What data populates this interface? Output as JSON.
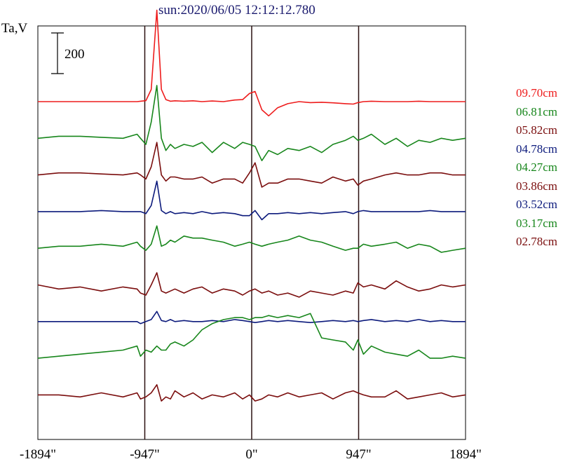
{
  "title": "sun:2020/06/05 12:12:12.780",
  "chart_data": {
    "type": "line",
    "title": "sun:2020/06/05 12:12:12.780",
    "ylabel": "Ta,V",
    "scale_bar": "200",
    "x_tick_labels": [
      "-1894\"",
      "-947\"",
      "0\"",
      "947\"",
      "1894\""
    ],
    "x_ticks": [
      -1894,
      -947,
      0,
      947,
      1894
    ],
    "xlim": [
      -1894,
      1894
    ],
    "vertical_lines": [
      -947,
      0,
      947
    ],
    "grid": false,
    "legend_position": "right",
    "x": [
      -1894,
      -1709,
      -1520,
      -1332,
      -1140,
      -1015,
      -985,
      -937,
      -890,
      -840,
      -800,
      -760,
      -720,
      -680,
      -600,
      -520,
      -440,
      -350,
      -250,
      -150,
      -80,
      -20,
      30,
      90,
      150,
      230,
      320,
      420,
      520,
      620,
      720,
      830,
      900,
      940,
      990,
      1060,
      1180,
      1280,
      1380,
      1480,
      1580,
      1680,
      1780,
      1894
    ],
    "series": [
      {
        "name": "09.70cm",
        "color": "#ee1c1c",
        "values": [
          0,
          0,
          0,
          0,
          0,
          0,
          2,
          5,
          60,
          450,
          60,
          10,
          2,
          4,
          2,
          4,
          0,
          3,
          0,
          8,
          10,
          40,
          50,
          -40,
          -70,
          -30,
          -10,
          0,
          -5,
          -3,
          -6,
          -10,
          -12,
          -5,
          0,
          2,
          0,
          0,
          0,
          2,
          0,
          0,
          0,
          0
        ]
      },
      {
        "name": "06.81cm",
        "color": "#17861b",
        "values": [
          0,
          10,
          10,
          5,
          0,
          20,
          0,
          -30,
          80,
          260,
          0,
          -60,
          -30,
          -50,
          -30,
          -40,
          -20,
          -70,
          -20,
          -50,
          -20,
          -30,
          -40,
          -110,
          -60,
          -80,
          -50,
          -60,
          -40,
          -70,
          -30,
          -10,
          10,
          -10,
          0,
          20,
          -30,
          0,
          -40,
          -10,
          -20,
          0,
          -10,
          0
        ]
      },
      {
        "name": "05.82cm",
        "color": "#7a0d0d",
        "values": [
          0,
          10,
          10,
          5,
          0,
          10,
          0,
          -20,
          40,
          160,
          0,
          -30,
          -10,
          -10,
          -20,
          -20,
          -10,
          -40,
          -20,
          -20,
          -40,
          10,
          60,
          -60,
          -40,
          -40,
          -20,
          -20,
          -30,
          -40,
          -10,
          -30,
          -20,
          -50,
          -30,
          -20,
          0,
          10,
          0,
          0,
          10,
          10,
          0,
          0
        ]
      },
      {
        "name": "04.78cm",
        "color": "#0c1a7c",
        "values": [
          0,
          0,
          0,
          5,
          0,
          0,
          0,
          -10,
          30,
          150,
          5,
          -10,
          0,
          -10,
          -5,
          -10,
          0,
          -10,
          -5,
          -10,
          -20,
          -20,
          5,
          -40,
          -10,
          -10,
          -5,
          -10,
          -5,
          -10,
          -5,
          0,
          -10,
          0,
          5,
          0,
          0,
          0,
          0,
          0,
          5,
          0,
          0,
          0
        ]
      },
      {
        "name": "04.27cm",
        "color": "#17861b",
        "values": [
          0,
          10,
          10,
          20,
          10,
          30,
          10,
          -10,
          20,
          110,
          10,
          20,
          40,
          30,
          60,
          50,
          50,
          40,
          30,
          10,
          20,
          30,
          20,
          10,
          20,
          30,
          40,
          60,
          40,
          30,
          10,
          -10,
          0,
          0,
          20,
          10,
          20,
          30,
          0,
          20,
          10,
          -20,
          -10,
          0
        ]
      },
      {
        "name": "03.86cm",
        "color": "#7a0d0d",
        "values": [
          0,
          -20,
          -10,
          -30,
          -10,
          -20,
          -40,
          -50,
          0,
          60,
          -30,
          -40,
          -30,
          -20,
          -40,
          -20,
          -10,
          -40,
          -20,
          -30,
          -50,
          -30,
          -20,
          -40,
          -30,
          -50,
          -40,
          -60,
          -30,
          -40,
          -50,
          -30,
          -40,
          10,
          -10,
          0,
          -20,
          20,
          -10,
          -30,
          -20,
          0,
          -10,
          0
        ]
      },
      {
        "name": "03.52cm",
        "color": "#0c1a7c",
        "values": [
          0,
          0,
          0,
          0,
          0,
          0,
          -10,
          0,
          10,
          50,
          5,
          0,
          10,
          0,
          5,
          0,
          0,
          5,
          0,
          10,
          5,
          0,
          -5,
          0,
          5,
          0,
          5,
          0,
          -5,
          0,
          5,
          0,
          5,
          0,
          5,
          10,
          0,
          5,
          0,
          10,
          0,
          5,
          0,
          0
        ]
      },
      {
        "name": "03.17cm",
        "color": "#17861b",
        "values": [
          0,
          10,
          20,
          30,
          40,
          60,
          10,
          40,
          30,
          60,
          40,
          40,
          70,
          80,
          60,
          90,
          140,
          170,
          190,
          200,
          200,
          190,
          200,
          200,
          210,
          200,
          210,
          200,
          220,
          100,
          90,
          80,
          40,
          90,
          20,
          60,
          30,
          20,
          10,
          40,
          0,
          0,
          10,
          0
        ]
      },
      {
        "name": "02.78cm",
        "color": "#7a0d0d",
        "values": [
          0,
          0,
          -10,
          10,
          -10,
          10,
          -20,
          -10,
          10,
          50,
          -30,
          -10,
          -20,
          20,
          -10,
          10,
          -20,
          0,
          -10,
          10,
          -20,
          0,
          -30,
          -20,
          0,
          -10,
          10,
          -10,
          0,
          10,
          -20,
          10,
          20,
          10,
          0,
          -10,
          -10,
          20,
          -20,
          -10,
          0,
          10,
          -10,
          0
        ]
      }
    ]
  }
}
